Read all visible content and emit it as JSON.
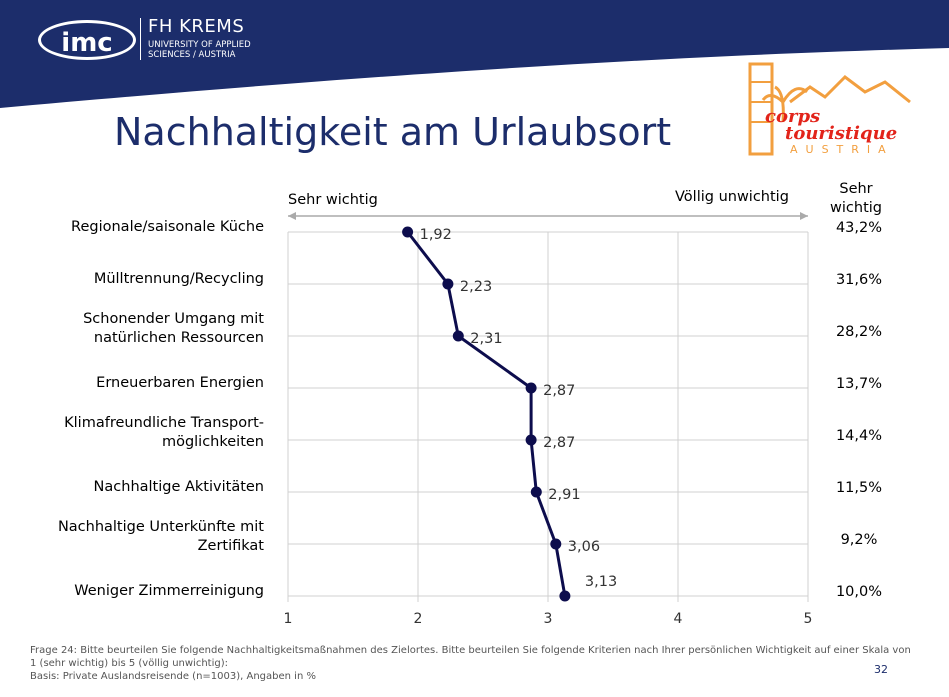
{
  "header": {
    "logo_imc": "imc",
    "logo_fh": "FH KREMS",
    "logo_fh_sub": "UNIVERSITY OF APPLIED SCIENCES / AUSTRIA",
    "brand_color": "#1c2d6b"
  },
  "title": "Nachhaltigkeit am Urlaubsort",
  "partner_logo": {
    "line1": "corps",
    "line2": "touristique",
    "line3": "AUSTRIA"
  },
  "scale_left": "Sehr wichtig",
  "scale_right": "Völlig unwichtig",
  "right_header": "Sehr wichtig",
  "chart_data": {
    "type": "line",
    "orientation": "horizontal",
    "categories": [
      "Regionale/saisonale Küche",
      "Mülltrennung/Recycling",
      "Schonender Umgang mit natürlichen Ressourcen",
      "Erneuerbaren Energien",
      "Klimafreundliche Transport-möglichkeiten",
      "Nachhaltige Aktivitäten",
      "Nachhaltige Unterkünfte mit Zertifikat",
      "Weniger Zimmerreinigung"
    ],
    "category_lines": [
      [
        "Regionale/saisonale Küche"
      ],
      [
        "Mülltrennung/Recycling"
      ],
      [
        "Schonender Umgang mit",
        "natürlichen Ressourcen"
      ],
      [
        "Erneuerbaren Energien"
      ],
      [
        "Klimafreundliche Transport-",
        "möglichkeiten"
      ],
      [
        "Nachhaltige Aktivitäten"
      ],
      [
        "Nachhaltige Unterkünfte mit",
        "Zertifikat"
      ],
      [
        "Weniger Zimmerreinigung"
      ]
    ],
    "values": [
      1.92,
      2.23,
      2.31,
      2.87,
      2.87,
      2.91,
      3.06,
      3.13
    ],
    "value_labels": [
      "1,92",
      "2,23",
      "2,31",
      "2,87",
      "2,87",
      "2,91",
      "3,06",
      "3,13"
    ],
    "percent_very_important": [
      "43,2%",
      "31,6%",
      "28,2%",
      "13,7%",
      "14,4%",
      "11,5%",
      "9,2%",
      "10,0%"
    ],
    "xlim": [
      1,
      5
    ],
    "xticks": [
      "1",
      "2",
      "3",
      "4",
      "5"
    ],
    "grid": true,
    "line_color": "#0d0d4d"
  },
  "footer": {
    "line1": "Frage 24: Bitte beurteilen Sie folgende Nachhaltigkeitsmaßnahmen des Zielortes.  Bitte beurteilen Sie folgende Kriterien nach Ihrer persönlichen Wichtigkeit auf einer Skala von 1 (sehr wichtig) bis 5 (völlig unwichtig):",
    "line2": "Basis: Private Auslandsreisende (n=1003), Angaben in %",
    "page_number": "32"
  }
}
